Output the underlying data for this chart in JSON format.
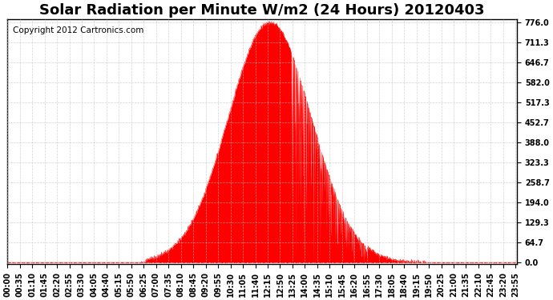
{
  "title": "Solar Radiation per Minute W/m2 (24 Hours) 20120403",
  "copyright_text": "Copyright 2012 Cartronics.com",
  "fill_color": "#FF0000",
  "background_color": "#FFFFFF",
  "plot_bg_color": "#FFFFFF",
  "grid_color": "#C0C0C0",
  "dashed_line_color": "#FF0000",
  "yticks": [
    0.0,
    64.7,
    129.3,
    194.0,
    258.7,
    323.3,
    388.0,
    452.7,
    517.3,
    582.0,
    646.7,
    711.3,
    776.0
  ],
  "ymax": 776.0,
  "ymin": 0.0,
  "title_fontsize": 13,
  "copyright_fontsize": 7.5,
  "tick_label_fontsize": 7,
  "xtick_interval": 5
}
